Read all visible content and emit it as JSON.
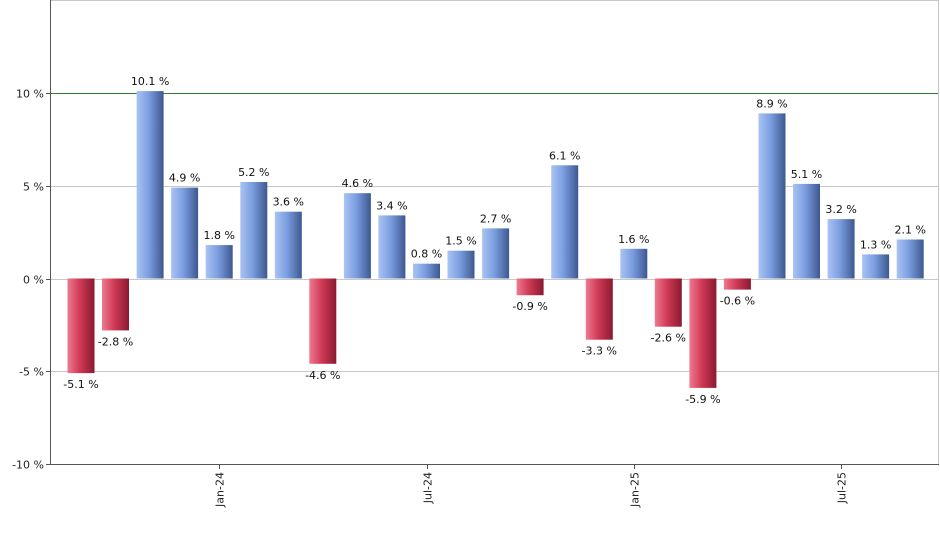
{
  "chart_data": {
    "type": "bar",
    "title": "",
    "xlabel": "",
    "ylabel": "",
    "ylim": [
      -10,
      10
    ],
    "y_ticks": [
      10,
      5,
      0,
      -5,
      -10
    ],
    "y_tick_labels": [
      "10 %",
      "5 %",
      "0 %",
      "-5 %",
      "-10 %"
    ],
    "reference_line": {
      "value": 10,
      "color": "#2e7d32"
    },
    "x_tick_labels": [
      {
        "label": "Jan-24",
        "index": 4
      },
      {
        "label": "Jul-24",
        "index": 10
      },
      {
        "label": "Jan-25",
        "index": 16
      },
      {
        "label": "Jul-25",
        "index": 22
      }
    ],
    "values": [
      -5.1,
      -2.8,
      10.1,
      4.9,
      1.8,
      5.2,
      3.6,
      -4.6,
      4.6,
      3.4,
      0.8,
      1.5,
      2.7,
      -0.9,
      6.1,
      -3.3,
      1.6,
      -2.6,
      -5.9,
      -0.6,
      8.9,
      5.1,
      3.2,
      1.3,
      2.1
    ],
    "value_labels": [
      "-5.1 %",
      "-2.8 %",
      "10.1 %",
      "4.9 %",
      "1.8 %",
      "5.2 %",
      "3.6 %",
      "-4.6 %",
      "4.6 %",
      "3.4 %",
      "0.8 %",
      "1.5 %",
      "2.7 %",
      "-0.9 %",
      "6.1 %",
      "-3.3 %",
      "1.6 %",
      "-2.6 %",
      "-5.9 %",
      "-0.6 %",
      "8.9 %",
      "5.1 %",
      "3.2 %",
      "1.3 %",
      "2.1 %"
    ],
    "colors": {
      "positive": "#6f93d6",
      "negative": "#c9344f"
    },
    "grid": true,
    "legend": "none"
  }
}
